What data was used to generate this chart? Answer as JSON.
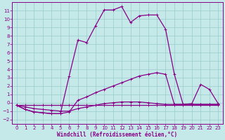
{
  "bg_color": "#c5e8e8",
  "line_color": "#880088",
  "grid_color": "#99cccc",
  "xlabel": "Windchill (Refroidissement éolien,°C)",
  "xlim_min": -0.5,
  "xlim_max": 23.5,
  "ylim_min": -2.5,
  "ylim_max": 12.0,
  "xticks": [
    0,
    1,
    2,
    3,
    4,
    5,
    6,
    7,
    8,
    9,
    10,
    11,
    12,
    13,
    14,
    15,
    16,
    17,
    18,
    19,
    20,
    21,
    22,
    23
  ],
  "yticks": [
    -2,
    -1,
    0,
    1,
    2,
    3,
    4,
    5,
    6,
    7,
    8,
    9,
    10,
    11
  ],
  "line1_x": [
    0,
    1,
    2,
    3,
    4,
    5,
    6,
    7,
    8,
    9,
    10,
    11,
    12,
    13,
    14,
    15,
    16,
    17,
    18,
    19,
    20,
    21,
    22,
    23
  ],
  "line1_y": [
    -0.3,
    -0.8,
    -1.1,
    -1.2,
    -1.3,
    -1.3,
    3.2,
    7.5,
    7.2,
    9.2,
    11.1,
    11.1,
    11.5,
    9.6,
    10.4,
    10.5,
    10.5,
    8.8,
    3.4,
    -0.2,
    -0.1,
    2.2,
    1.6,
    -0.1
  ],
  "line2_x": [
    0,
    1,
    2,
    3,
    4,
    5,
    6,
    7,
    8,
    9,
    10,
    11,
    12,
    13,
    14,
    15,
    16,
    17,
    18,
    19,
    20,
    21,
    22,
    23
  ],
  "line2_y": [
    -0.3,
    -0.8,
    -1.1,
    -1.2,
    -1.3,
    -1.3,
    -1.1,
    0.3,
    0.7,
    1.2,
    1.6,
    2.0,
    2.4,
    2.8,
    3.2,
    3.4,
    3.6,
    3.4,
    -0.2,
    -0.2,
    -0.2,
    -0.2,
    -0.2,
    -0.2
  ],
  "line3_x": [
    0,
    1,
    2,
    3,
    4,
    5,
    6,
    7,
    8,
    9,
    10,
    11,
    12,
    13,
    14,
    15,
    16,
    17,
    18,
    19,
    20,
    21,
    22,
    23
  ],
  "line3_y": [
    -0.3,
    -0.5,
    -0.7,
    -0.8,
    -0.9,
    -1.0,
    -1.0,
    -0.7,
    -0.5,
    -0.3,
    -0.1,
    0.0,
    0.1,
    0.1,
    0.1,
    0.0,
    -0.1,
    -0.2,
    -0.2,
    -0.2,
    -0.2,
    -0.2,
    -0.2,
    -0.2
  ],
  "line4_x": [
    0,
    1,
    2,
    3,
    4,
    5,
    6,
    7,
    8,
    9,
    10,
    11,
    12,
    13,
    14,
    15,
    16,
    17,
    18,
    19,
    20,
    21,
    22,
    23
  ],
  "line4_y": [
    -0.3,
    -0.3,
    -0.3,
    -0.3,
    -0.3,
    -0.3,
    -0.3,
    -0.3,
    -0.3,
    -0.3,
    -0.3,
    -0.3,
    -0.3,
    -0.3,
    -0.3,
    -0.3,
    -0.3,
    -0.3,
    -0.3,
    -0.3,
    -0.3,
    -0.3,
    -0.3,
    -0.3
  ],
  "marker_size": 2.0,
  "line_width": 0.9,
  "tick_fontsize": 5.0,
  "xlabel_fontsize": 5.5
}
